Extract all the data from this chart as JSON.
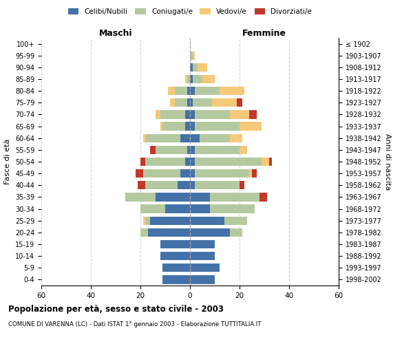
{
  "age_groups": [
    "0-4",
    "5-9",
    "10-14",
    "15-19",
    "20-24",
    "25-29",
    "30-34",
    "35-39",
    "40-44",
    "45-49",
    "50-54",
    "55-59",
    "60-64",
    "65-69",
    "70-74",
    "75-79",
    "80-84",
    "85-89",
    "90-94",
    "95-99",
    "100+"
  ],
  "birth_years": [
    "1998-2002",
    "1993-1997",
    "1988-1992",
    "1983-1987",
    "1978-1982",
    "1973-1977",
    "1968-1972",
    "1963-1967",
    "1958-1962",
    "1953-1957",
    "1948-1952",
    "1943-1947",
    "1938-1942",
    "1933-1937",
    "1928-1932",
    "1923-1927",
    "1918-1922",
    "1913-1917",
    "1908-1912",
    "1903-1907",
    "≤ 1902"
  ],
  "males": {
    "celibi": [
      11,
      11,
      12,
      12,
      17,
      16,
      10,
      14,
      5,
      4,
      2,
      1,
      4,
      2,
      2,
      1,
      1,
      0,
      0,
      0,
      0
    ],
    "coniugati": [
      0,
      0,
      0,
      0,
      3,
      2,
      10,
      12,
      13,
      15,
      16,
      13,
      14,
      9,
      10,
      5,
      5,
      1,
      0,
      0,
      0
    ],
    "vedovi": [
      0,
      0,
      0,
      0,
      0,
      1,
      0,
      0,
      0,
      0,
      0,
      0,
      1,
      1,
      2,
      2,
      3,
      1,
      0,
      0,
      0
    ],
    "divorziati": [
      0,
      0,
      0,
      0,
      0,
      0,
      0,
      0,
      3,
      3,
      2,
      2,
      0,
      0,
      0,
      0,
      0,
      0,
      0,
      0,
      0
    ]
  },
  "females": {
    "nubili": [
      10,
      12,
      10,
      10,
      16,
      14,
      8,
      8,
      2,
      2,
      2,
      2,
      4,
      2,
      2,
      1,
      2,
      1,
      1,
      0,
      0
    ],
    "coniugate": [
      0,
      0,
      0,
      0,
      5,
      9,
      18,
      20,
      18,
      22,
      27,
      18,
      12,
      18,
      14,
      8,
      10,
      4,
      2,
      1,
      0
    ],
    "vedove": [
      0,
      0,
      0,
      0,
      0,
      0,
      0,
      0,
      0,
      1,
      3,
      3,
      5,
      9,
      8,
      10,
      10,
      5,
      4,
      1,
      0
    ],
    "divorziate": [
      0,
      0,
      0,
      0,
      0,
      0,
      0,
      3,
      2,
      2,
      1,
      0,
      0,
      0,
      3,
      2,
      0,
      0,
      0,
      0,
      0
    ]
  },
  "colors": {
    "celibi": "#4472a8",
    "coniugati": "#b5c9a0",
    "vedovi": "#f5c97a",
    "divorziati": "#c0392b"
  },
  "xlim": 60,
  "title": "Popolazione per età, sesso e stato civile - 2003",
  "subtitle": "COMUNE DI VARENNA (LC) - Dati ISTAT 1° gennaio 2003 - Elaborazione TUTTITALIA.IT",
  "ylabel_left": "Fasce di età",
  "ylabel_right": "Anni di nascita",
  "xlabel_left": "Maschi",
  "xlabel_right": "Femmine"
}
